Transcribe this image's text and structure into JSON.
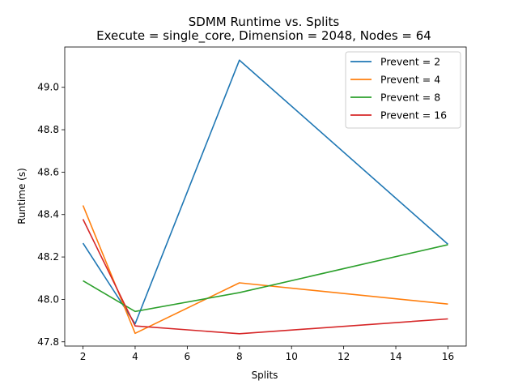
{
  "chart_data": {
    "type": "line",
    "title": "SDMM Runtime vs. Splits",
    "subtitle": "Execute = single_core, Dimension = 2048, Nodes = 64",
    "xlabel": "Splits",
    "ylabel": "Runtime (s)",
    "xlim": [
      1.3,
      16.7
    ],
    "ylim": [
      47.78,
      49.19
    ],
    "xticks": [
      2,
      4,
      6,
      8,
      10,
      12,
      14,
      16
    ],
    "yticks": [
      "47.8",
      "48.0",
      "48.2",
      "48.4",
      "48.6",
      "48.8",
      "49.0"
    ],
    "x": [
      2,
      4,
      8,
      16
    ],
    "series": [
      {
        "name": "Prevent = 2",
        "color": "#1f77b4",
        "values": [
          48.265,
          47.885,
          49.128,
          48.26
        ]
      },
      {
        "name": "Prevent = 4",
        "color": "#ff7f0e",
        "values": [
          48.443,
          47.84,
          48.078,
          47.978
        ]
      },
      {
        "name": "Prevent = 8",
        "color": "#2ca02c",
        "values": [
          48.088,
          47.943,
          48.032,
          48.258
        ]
      },
      {
        "name": "Prevent = 16",
        "color": "#d62728",
        "values": [
          48.378,
          47.875,
          47.838,
          47.908
        ]
      }
    ],
    "legend": "top-right",
    "grid": false
  }
}
